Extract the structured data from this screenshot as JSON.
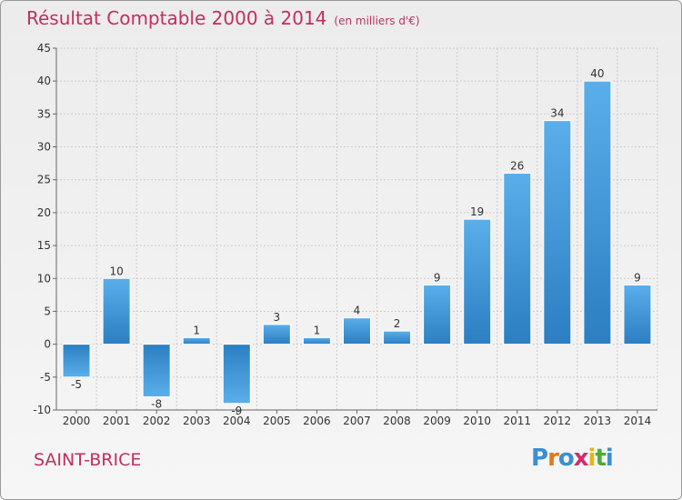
{
  "header": {
    "title": "Résultat Comptable 2000 à 2014",
    "unit": "(en milliers d'€)"
  },
  "footer": {
    "commune": "SAINT-BRICE",
    "logo_letters": [
      "P",
      "r",
      "o",
      "x",
      "i",
      "t",
      "i"
    ],
    "logo_colors": [
      "#3a8fd0",
      "#e07a1a",
      "#3a8fd0",
      "#d12d6a",
      "#e0b81a",
      "#4caa3c",
      "#3a8fd0"
    ]
  },
  "colors": {
    "bar_light": "#5aaeea",
    "bar_dark": "#2b7fc2",
    "grid": "#cccccc",
    "axis": "#666666"
  },
  "chart_data": {
    "type": "bar",
    "title": "Résultat Comptable 2000 à 2014",
    "xlabel": "",
    "ylabel": "",
    "categories": [
      "2000",
      "2001",
      "2002",
      "2003",
      "2004",
      "2005",
      "2006",
      "2007",
      "2008",
      "2009",
      "2010",
      "2011",
      "2012",
      "2013",
      "2014"
    ],
    "values": [
      -5,
      10,
      -8,
      1,
      -9,
      3,
      1,
      4,
      2,
      9,
      19,
      26,
      34,
      40,
      9
    ],
    "value_labels": [
      "-5",
      "10",
      "-8",
      "1",
      "-9",
      "3",
      "1",
      "4",
      "2",
      "9",
      "19",
      "26",
      "34",
      "40",
      "9"
    ],
    "ylim": [
      -10,
      45
    ],
    "yticks": [
      -10,
      -5,
      0,
      5,
      10,
      15,
      20,
      25,
      30,
      35,
      40,
      45
    ],
    "ytick_labels": [
      "-10",
      "-5",
      "0",
      "5",
      "10",
      "15",
      "20",
      "25",
      "30",
      "35",
      "40",
      "45"
    ],
    "grid": true
  }
}
